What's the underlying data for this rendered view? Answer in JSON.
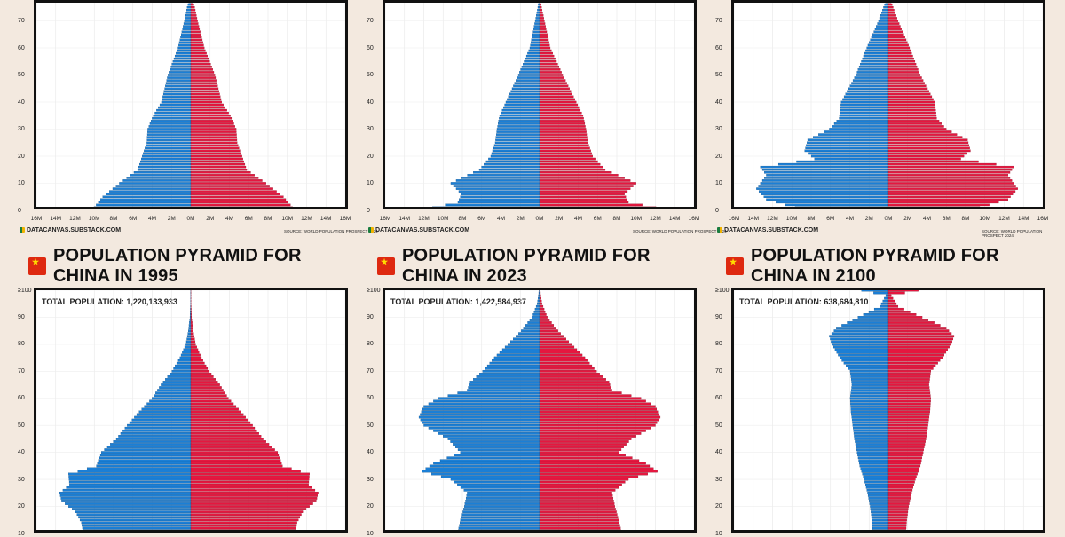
{
  "colors": {
    "background": "#f3e9df",
    "male": "#1b7fd6",
    "female": "#e5173f",
    "flag": "#de2910"
  },
  "footer": {
    "left": "DATACANVAS.SUBSTACK.COM",
    "right": "SOURCE: WORLD POPULATION PROSPECT 2024"
  },
  "chart_data": [
    {
      "type": "population_pyramid",
      "title": "",
      "total": "",
      "xlim": [
        -16,
        16
      ],
      "y_ticks": [
        0,
        10,
        20,
        30,
        40,
        50,
        60,
        70
      ],
      "x_ticks": [
        "16M",
        "14M",
        "12M",
        "10M",
        "8M",
        "6M",
        "4M",
        "2M",
        "0M",
        "2M",
        "4M",
        "6M",
        "8M",
        "10M",
        "12M",
        "14M",
        "16M"
      ],
      "profile": [
        [
          0,
          10.8
        ],
        [
          5,
          9.6
        ],
        [
          10,
          7.8
        ],
        [
          15,
          5.8
        ],
        [
          20,
          5.3
        ],
        [
          25,
          4.8
        ],
        [
          30,
          4.7
        ],
        [
          35,
          4.1
        ],
        [
          40,
          3.2
        ],
        [
          50,
          2.5
        ],
        [
          60,
          1.4
        ],
        [
          70,
          0.7
        ],
        [
          75,
          0.4
        ],
        [
          80,
          0.0
        ]
      ],
      "male_scale": 0.95,
      "female_scale": 1.0
    },
    {
      "type": "population_pyramid",
      "title": "",
      "total": "",
      "xlim": [
        -16,
        16
      ],
      "y_ticks": [
        0,
        10,
        20,
        30,
        40,
        50,
        60,
        70
      ],
      "x_ticks": [
        "16M",
        "14M",
        "12M",
        "10M",
        "8M",
        "6M",
        "4M",
        "2M",
        "0M",
        "2M",
        "4M",
        "6M",
        "8M",
        "10M",
        "12M",
        "14M",
        "16M"
      ],
      "profile": [
        [
          0,
          13.5
        ],
        [
          3,
          9.2
        ],
        [
          6,
          8.8
        ],
        [
          10,
          10.0
        ],
        [
          12,
          8.8
        ],
        [
          15,
          6.8
        ],
        [
          20,
          5.5
        ],
        [
          25,
          5.0
        ],
        [
          30,
          4.8
        ],
        [
          35,
          4.5
        ],
        [
          40,
          3.8
        ],
        [
          50,
          2.4
        ],
        [
          60,
          1.1
        ],
        [
          70,
          0.5
        ],
        [
          75,
          0.2
        ],
        [
          80,
          0.0
        ]
      ],
      "male_scale": 0.92,
      "female_scale": 1.0
    },
    {
      "type": "population_pyramid",
      "title": "",
      "total": "",
      "xlim": [
        -16,
        16
      ],
      "y_ticks": [
        0,
        10,
        20,
        30,
        40,
        50,
        60,
        70
      ],
      "x_ticks": [
        "16M",
        "14M",
        "12M",
        "10M",
        "8M",
        "6M",
        "4M",
        "2M",
        "0M",
        "2M",
        "4M",
        "6M",
        "8M",
        "10M",
        "12M",
        "14M",
        "16M"
      ],
      "profile": [
        [
          0,
          8.5
        ],
        [
          4,
          12.4
        ],
        [
          8,
          13.4
        ],
        [
          13,
          12.4
        ],
        [
          16,
          13.0
        ],
        [
          19,
          7.5
        ],
        [
          22,
          8.5
        ],
        [
          26,
          8.2
        ],
        [
          30,
          6.0
        ],
        [
          34,
          5.0
        ],
        [
          40,
          4.8
        ],
        [
          50,
          3.3
        ],
        [
          60,
          2.2
        ],
        [
          70,
          1.0
        ],
        [
          75,
          0.5
        ],
        [
          80,
          0.0
        ]
      ],
      "male_scale": 1.02,
      "female_scale": 1.0
    },
    {
      "type": "population_pyramid",
      "title": "POPULATION PYRAMID FOR CHINA IN 1995",
      "total": "TOTAL POPULATION: 1,220,133,933",
      "xlim": [
        -16,
        16
      ],
      "y_ticks": [
        10,
        20,
        30,
        40,
        50,
        60,
        70,
        80,
        90,
        "≥100"
      ],
      "x_ticks": [],
      "profile": [
        [
          10,
          10.8
        ],
        [
          14,
          11.0
        ],
        [
          18,
          11.6
        ],
        [
          22,
          13.0
        ],
        [
          25,
          13.2
        ],
        [
          28,
          12.2
        ],
        [
          32,
          12.3
        ],
        [
          35,
          9.5
        ],
        [
          40,
          9.0
        ],
        [
          45,
          7.5
        ],
        [
          50,
          6.4
        ],
        [
          55,
          5.2
        ],
        [
          60,
          3.9
        ],
        [
          65,
          3.0
        ],
        [
          70,
          1.9
        ],
        [
          75,
          1.1
        ],
        [
          80,
          0.5
        ],
        [
          85,
          0.25
        ],
        [
          90,
          0.08
        ],
        [
          95,
          0.03
        ],
        [
          100,
          0.01
        ]
      ],
      "male_scale": 1.03,
      "female_scale": 1.0
    },
    {
      "type": "population_pyramid",
      "title": "POPULATION PYRAMID FOR CHINA IN 2023",
      "total": "TOTAL POPULATION: 1,422,584,937",
      "xlim": [
        -16,
        16
      ],
      "y_ticks": [
        10,
        20,
        30,
        40,
        50,
        60,
        70,
        80,
        90,
        "≥100"
      ],
      "x_ticks": [],
      "profile": [
        [
          10,
          8.5
        ],
        [
          15,
          8.2
        ],
        [
          20,
          7.8
        ],
        [
          25,
          7.5
        ],
        [
          30,
          9.2
        ],
        [
          33,
          12.2
        ],
        [
          36,
          11.0
        ],
        [
          40,
          8.2
        ],
        [
          45,
          9.5
        ],
        [
          50,
          12.0
        ],
        [
          53,
          12.5
        ],
        [
          57,
          12.0
        ],
        [
          60,
          10.5
        ],
        [
          63,
          7.5
        ],
        [
          66,
          7.2
        ],
        [
          70,
          5.9
        ],
        [
          75,
          4.7
        ],
        [
          80,
          3.3
        ],
        [
          85,
          1.9
        ],
        [
          90,
          0.8
        ],
        [
          95,
          0.25
        ],
        [
          100,
          0.05
        ]
      ],
      "male_scale": 1.0,
      "female_scale": 1.0
    },
    {
      "type": "population_pyramid",
      "title": "POPULATION PYRAMID FOR CHINA IN 2100",
      "total": "TOTAL POPULATION: 638,684,810",
      "xlim": [
        -16,
        16
      ],
      "y_ticks": [
        10,
        20,
        30,
        40,
        50,
        60,
        70,
        80,
        90,
        "≥100"
      ],
      "x_ticks": [],
      "profile": [
        [
          10,
          1.8
        ],
        [
          15,
          1.9
        ],
        [
          20,
          2.1
        ],
        [
          25,
          2.4
        ],
        [
          30,
          2.8
        ],
        [
          35,
          3.3
        ],
        [
          40,
          3.6
        ],
        [
          45,
          3.9
        ],
        [
          50,
          4.1
        ],
        [
          55,
          4.3
        ],
        [
          60,
          4.4
        ],
        [
          65,
          4.2
        ],
        [
          70,
          4.4
        ],
        [
          75,
          5.6
        ],
        [
          80,
          6.5
        ],
        [
          83,
          6.8
        ],
        [
          86,
          6.0
        ],
        [
          90,
          3.5
        ],
        [
          94,
          1.0
        ],
        [
          98,
          0.3
        ],
        [
          100,
          3.1
        ]
      ],
      "male_scale": 0.9,
      "female_scale": 1.0
    }
  ]
}
